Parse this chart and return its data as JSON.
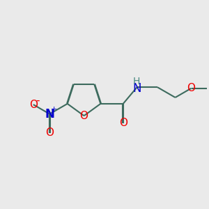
{
  "bg_color": "#eaeaea",
  "bond_color": "#3d6b5e",
  "bond_width": 1.5,
  "atom_colors": {
    "O": "#ee0000",
    "N": "#0000cc",
    "H": "#4a8a80"
  },
  "font_size": 11,
  "dbo": 0.03
}
